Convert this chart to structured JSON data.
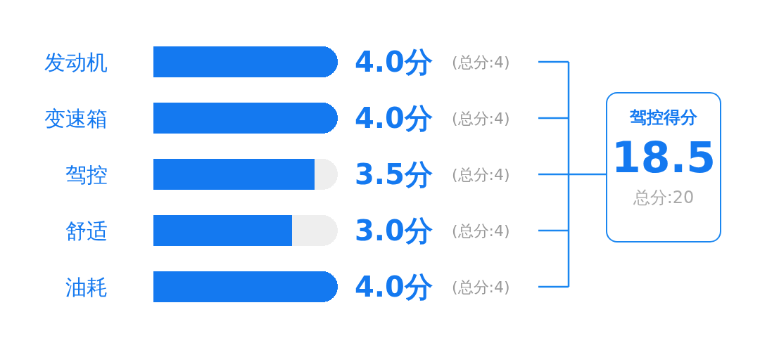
{
  "chart_data": {
    "type": "bar",
    "orientation": "horizontal",
    "stacked": true,
    "categories": [
      "发动机",
      "变速箱",
      "驾控",
      "舒适",
      "油耗"
    ],
    "xlim": [
      0,
      4
    ],
    "tick_labels": "y",
    "series": [
      {
        "color": "#1479f0",
        "values": [
          4,
          4,
          3.5,
          3,
          4
        ],
        "value_labels": [
          "4.0分",
          "4.0分",
          "3.5分",
          "3.0分",
          "4.0分"
        ]
      },
      {
        "color": "#eeeeee",
        "values": [
          0,
          0,
          0.5,
          1,
          0
        ]
      }
    ],
    "annotations": [
      "(总分:4)",
      "(总分:4)",
      "(总分:4)",
      "(总分:4)",
      "(总分:4)",
      "驾控得分",
      "18.5",
      "总分:20"
    ]
  }
}
